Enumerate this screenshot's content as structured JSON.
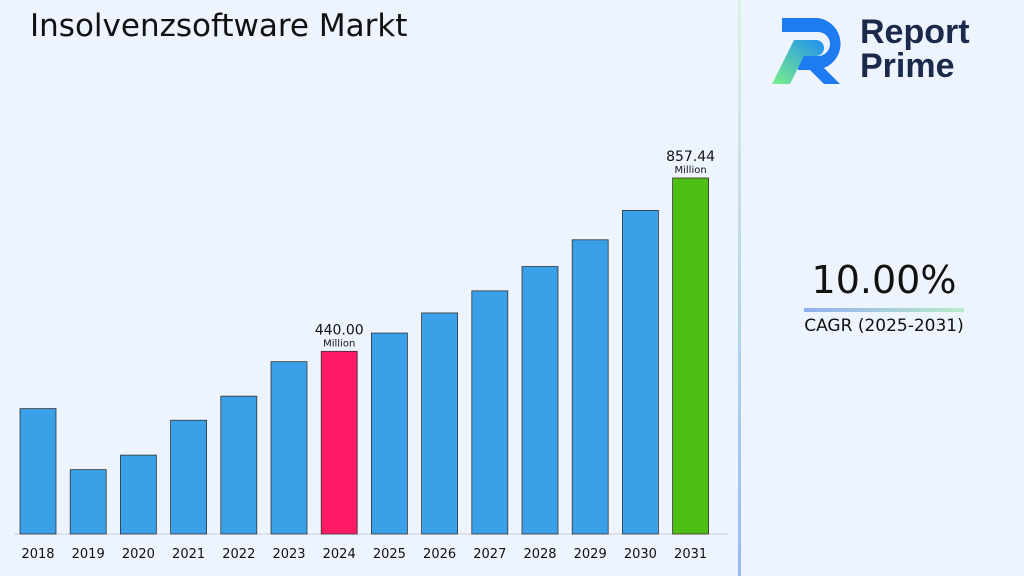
{
  "title": "Insolvenzsoftware Markt",
  "logo": {
    "line1": "Report",
    "line2": "Prime"
  },
  "cagr": {
    "value": "10.00%",
    "label": "CAGR (2025-2031)"
  },
  "colors": {
    "bar": "#3aa0e8",
    "highlight_2024": "#ff1a66",
    "highlight_2031": "#4cbf12"
  },
  "chart_data": {
    "type": "bar",
    "categories": [
      "2018",
      "2019",
      "2020",
      "2021",
      "2022",
      "2023",
      "2024",
      "2025",
      "2026",
      "2027",
      "2028",
      "2029",
      "2030",
      "2031"
    ],
    "values": [
      302,
      155,
      190,
      274,
      332,
      415,
      440,
      484,
      532.4,
      585.6,
      644.2,
      708.6,
      779.5,
      857.44
    ],
    "data_labels": [
      {
        "index": 6,
        "value": "440.00",
        "unit": "Million"
      },
      {
        "index": 13,
        "value": "857.44",
        "unit": "Million"
      }
    ],
    "ylim": [
      0,
      900
    ],
    "grid": false
  }
}
